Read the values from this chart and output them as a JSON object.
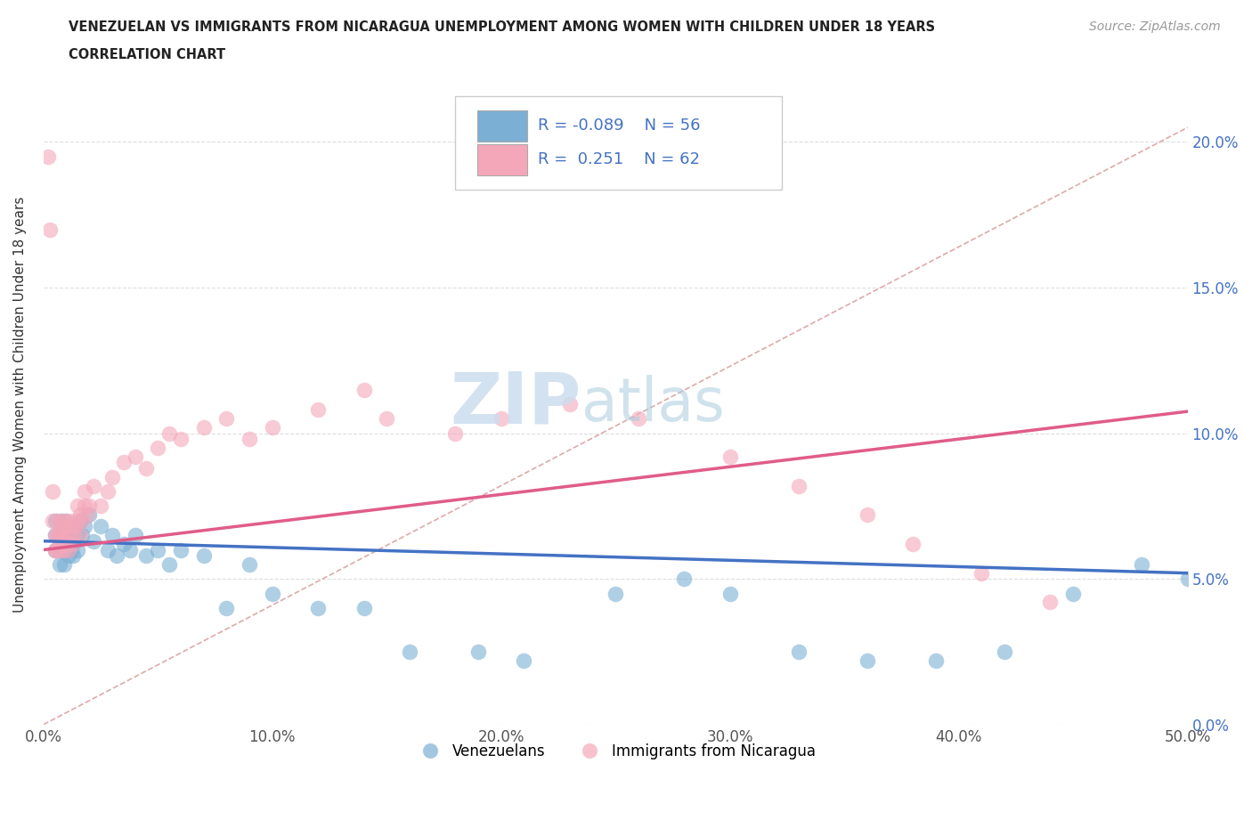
{
  "title_line1": "VENEZUELAN VS IMMIGRANTS FROM NICARAGUA UNEMPLOYMENT AMONG WOMEN WITH CHILDREN UNDER 18 YEARS",
  "title_line2": "CORRELATION CHART",
  "source_text": "Source: ZipAtlas.com",
  "ylabel": "Unemployment Among Women with Children Under 18 years",
  "xlim": [
    0.0,
    0.5
  ],
  "ylim": [
    0.0,
    0.22
  ],
  "xticks": [
    0.0,
    0.1,
    0.2,
    0.3,
    0.4,
    0.5
  ],
  "xticklabels": [
    "0.0%",
    "10.0%",
    "20.0%",
    "30.0%",
    "40.0%",
    "50.0%"
  ],
  "yticks": [
    0.0,
    0.05,
    0.1,
    0.15,
    0.2
  ],
  "yticklabels": [
    "0.0%",
    "5.0%",
    "10.0%",
    "15.0%",
    "20.0%"
  ],
  "blue_color": "#7BAFD4",
  "pink_color": "#F4A7B9",
  "blue_line_color": "#4472C4",
  "pink_line_color": "#E05C8A",
  "r_blue": -0.089,
  "n_blue": 56,
  "r_pink": 0.251,
  "n_pink": 62,
  "legend_label_blue": "Venezuelans",
  "legend_label_pink": "Immigrants from Nicaragua",
  "watermark_zip": "ZIP",
  "watermark_atlas": "atlas",
  "background_color": "#FFFFFF",
  "blue_intercept": 0.063,
  "blue_slope": -0.022,
  "pink_intercept": 0.06,
  "pink_slope": 0.095,
  "venezuelan_x": [
    0.005,
    0.005,
    0.005,
    0.007,
    0.007,
    0.008,
    0.008,
    0.009,
    0.009,
    0.01,
    0.01,
    0.01,
    0.011,
    0.011,
    0.012,
    0.012,
    0.013,
    0.013,
    0.014,
    0.015,
    0.015,
    0.016,
    0.017,
    0.018,
    0.02,
    0.022,
    0.025,
    0.028,
    0.03,
    0.032,
    0.035,
    0.038,
    0.04,
    0.045,
    0.05,
    0.055,
    0.06,
    0.07,
    0.08,
    0.09,
    0.1,
    0.12,
    0.14,
    0.16,
    0.19,
    0.21,
    0.25,
    0.28,
    0.3,
    0.33,
    0.36,
    0.39,
    0.42,
    0.45,
    0.48,
    0.5
  ],
  "venezuelan_y": [
    0.065,
    0.07,
    0.06,
    0.065,
    0.055,
    0.07,
    0.06,
    0.065,
    0.055,
    0.07,
    0.065,
    0.06,
    0.068,
    0.058,
    0.065,
    0.06,
    0.062,
    0.058,
    0.068,
    0.065,
    0.06,
    0.07,
    0.065,
    0.068,
    0.072,
    0.063,
    0.068,
    0.06,
    0.065,
    0.058,
    0.062,
    0.06,
    0.065,
    0.058,
    0.06,
    0.055,
    0.06,
    0.058,
    0.04,
    0.055,
    0.045,
    0.04,
    0.04,
    0.025,
    0.025,
    0.022,
    0.045,
    0.05,
    0.045,
    0.025,
    0.022,
    0.022,
    0.025,
    0.045,
    0.055,
    0.05
  ],
  "nicaragua_x": [
    0.002,
    0.003,
    0.004,
    0.004,
    0.005,
    0.005,
    0.005,
    0.006,
    0.006,
    0.007,
    0.007,
    0.008,
    0.008,
    0.009,
    0.009,
    0.009,
    0.01,
    0.01,
    0.01,
    0.011,
    0.011,
    0.012,
    0.012,
    0.013,
    0.013,
    0.014,
    0.015,
    0.015,
    0.016,
    0.016,
    0.017,
    0.018,
    0.018,
    0.019,
    0.02,
    0.022,
    0.025,
    0.028,
    0.03,
    0.035,
    0.04,
    0.045,
    0.05,
    0.055,
    0.06,
    0.07,
    0.08,
    0.09,
    0.1,
    0.12,
    0.14,
    0.15,
    0.18,
    0.2,
    0.23,
    0.26,
    0.3,
    0.33,
    0.36,
    0.38,
    0.41,
    0.44
  ],
  "nicaragua_y": [
    0.195,
    0.17,
    0.08,
    0.07,
    0.06,
    0.065,
    0.06,
    0.065,
    0.07,
    0.065,
    0.06,
    0.065,
    0.07,
    0.065,
    0.068,
    0.06,
    0.068,
    0.062,
    0.07,
    0.065,
    0.06,
    0.068,
    0.07,
    0.062,
    0.065,
    0.068,
    0.07,
    0.075,
    0.072,
    0.065,
    0.07,
    0.075,
    0.08,
    0.072,
    0.075,
    0.082,
    0.075,
    0.08,
    0.085,
    0.09,
    0.092,
    0.088,
    0.095,
    0.1,
    0.098,
    0.102,
    0.105,
    0.098,
    0.102,
    0.108,
    0.115,
    0.105,
    0.1,
    0.105,
    0.11,
    0.105,
    0.092,
    0.082,
    0.072,
    0.062,
    0.052,
    0.042
  ]
}
